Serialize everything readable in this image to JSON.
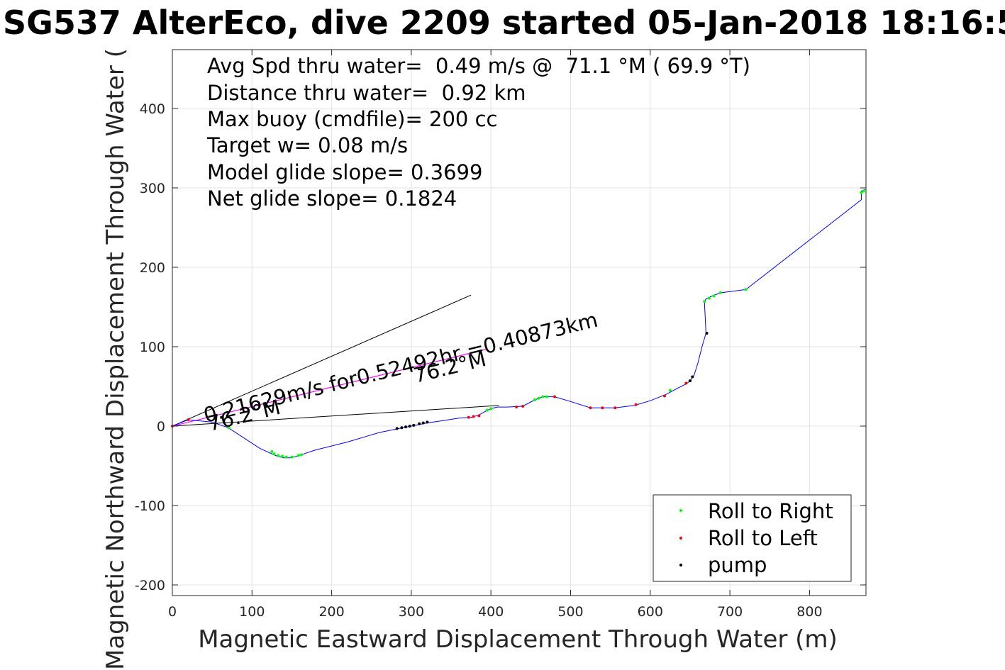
{
  "chart_data": {
    "type": "line",
    "title": "SG537 AlterEco, dive 2209 started 05-Jan-2018 18:16:5",
    "xlabel": "Magnetic Eastward Displacement Through Water (m)",
    "ylabel": "Magnetic Northward Displacement Through Water (",
    "xlim": [
      0,
      870
    ],
    "ylim": [
      -210,
      475
    ],
    "xticks": [
      0,
      100,
      200,
      300,
      400,
      500,
      600,
      700,
      800
    ],
    "yticks": [
      -200,
      -100,
      0,
      100,
      200,
      300,
      400
    ],
    "grid": true,
    "stats": [
      "Avg Spd thru water=  0.49 m/s @  71.1 °M ( 69.9 °T)",
      "Distance thru water=  0.92 km",
      "Max buoy (cmdfile)= 200 cc",
      "Target w= 0.08 m/s",
      "Model glide slope= 0.3699",
      "Net glide slope= 0.1824"
    ],
    "annotations": {
      "current_text": "0.21629m/s for0.52492hr =0.40873km",
      "heading_1": "76.2°M",
      "heading_2": "76.2°M"
    },
    "colors": {
      "track": "#0000ff",
      "current": "#ff00ff",
      "roll_right": "#00ff00",
      "roll_left": "#ff0000",
      "pump": "#000000",
      "guide": "#000000",
      "grid": "#e3e3e3"
    },
    "track": {
      "x": [
        0,
        20,
        50,
        70,
        90,
        110,
        125,
        132,
        140,
        148,
        156,
        165,
        180,
        200,
        220,
        240,
        260,
        280,
        300,
        320,
        340,
        360,
        375,
        385,
        392,
        400,
        408,
        420,
        440,
        455,
        465,
        480,
        500,
        525,
        540,
        556,
        580,
        600,
        620,
        635,
        645,
        650,
        655,
        660,
        665,
        670,
        668,
        670,
        680,
        690,
        720,
        865,
        865,
        870
      ],
      "y": [
        0,
        8,
        5,
        -2,
        -15,
        -28,
        -35,
        -38,
        -40,
        -40,
        -38,
        -35,
        -30,
        -25,
        -20,
        -14,
        -8,
        -4,
        0,
        4,
        7,
        10,
        11,
        14,
        18,
        22,
        24,
        24,
        25,
        33,
        37,
        37,
        31,
        23,
        23,
        23,
        26,
        32,
        40,
        48,
        53,
        57,
        64,
        80,
        100,
        117,
        157,
        160,
        165,
        168,
        172,
        285,
        296,
        298
      ]
    },
    "current_line": {
      "x": [
        0,
        395
      ],
      "y": [
        0,
        97
      ]
    },
    "guide_lines": [
      {
        "x": [
          0,
          375
        ],
        "y": [
          0,
          165
        ]
      },
      {
        "x": [
          0,
          410
        ],
        "y": [
          0,
          26
        ]
      }
    ],
    "series": [
      {
        "name": "Roll to Right",
        "marker": "dot",
        "color": "#00ff00",
        "x": [
          71,
          125,
          128,
          133,
          138,
          143,
          150,
          158,
          162,
          395,
          400,
          455,
          460,
          465,
          470,
          625,
          668,
          674,
          680,
          688,
          720,
          865,
          868
        ],
        "y": [
          -2,
          -32,
          -35,
          -37,
          -38,
          -39,
          -39,
          -37,
          -36,
          20,
          22,
          33,
          35,
          37,
          37,
          45,
          157,
          161,
          164,
          168,
          172,
          294,
          296
        ]
      },
      {
        "name": "Roll to Left",
        "marker": "dot",
        "color": "#ff0000",
        "x": [
          0,
          20,
          372,
          378,
          385,
          432,
          440,
          480,
          525,
          540,
          556,
          582,
          618,
          645
        ],
        "y": [
          0,
          8,
          11,
          12,
          13,
          24,
          25,
          37,
          23,
          23,
          23,
          27,
          38,
          54
        ]
      },
      {
        "name": "pump",
        "marker": "dot",
        "color": "#000000",
        "x": [
          282,
          288,
          293,
          298,
          303,
          310,
          315,
          320,
          650,
          653,
          671
        ],
        "y": [
          -3,
          -2,
          -1,
          0,
          1,
          3,
          4,
          5,
          57,
          62,
          117
        ]
      }
    ],
    "legend": {
      "position": "bottom-right",
      "entries": [
        "Roll to Right",
        "Roll to Left",
        "pump"
      ]
    }
  }
}
